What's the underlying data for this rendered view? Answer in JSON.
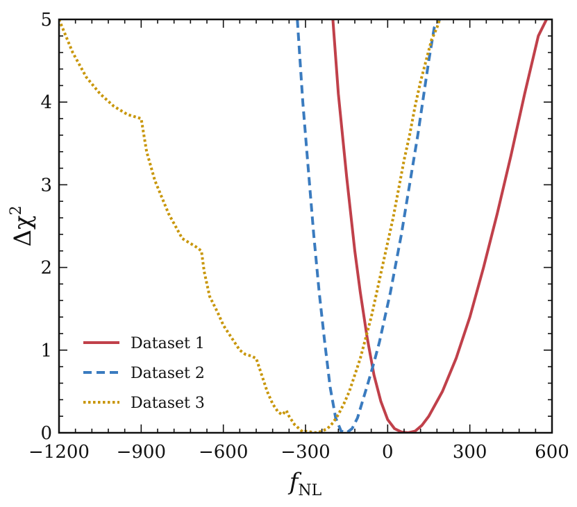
{
  "chart_data": {
    "type": "line",
    "title": "",
    "xlabel": "f",
    "xlabel_sub": "NL",
    "ylabel": "Δχ",
    "ylabel_sup": "2",
    "xlim": [
      -1200,
      600
    ],
    "ylim": [
      0,
      5
    ],
    "xticks": [
      -1200,
      -900,
      -600,
      -300,
      0,
      300,
      600
    ],
    "xtick_labels": [
      "−1200",
      "−900",
      "−600",
      "−300",
      "0",
      "300",
      "600"
    ],
    "yticks": [
      0,
      1,
      2,
      3,
      4,
      5
    ],
    "ytick_labels": [
      "0",
      "1",
      "2",
      "3",
      "4",
      "5"
    ],
    "legend_position": "lower-left",
    "series": [
      {
        "name": "Dataset 1",
        "style": "solid",
        "color": "#c0404a",
        "x": [
          -200,
          -180,
          -150,
          -120,
          -100,
          -75,
          -50,
          -25,
          0,
          25,
          50,
          75,
          100,
          125,
          150,
          200,
          250,
          300,
          350,
          400,
          450,
          500,
          550,
          580
        ],
        "y": [
          5.0,
          4.1,
          3.1,
          2.2,
          1.7,
          1.15,
          0.7,
          0.38,
          0.16,
          0.05,
          0.01,
          0.0,
          0.02,
          0.09,
          0.2,
          0.5,
          0.9,
          1.4,
          2.0,
          2.65,
          3.35,
          4.1,
          4.8,
          5.0
        ]
      },
      {
        "name": "Dataset 2",
        "style": "dashed",
        "color": "#3a7bbf",
        "x": [
          -330,
          -310,
          -290,
          -270,
          -250,
          -230,
          -210,
          -190,
          -170,
          -150,
          -130,
          -110,
          -90,
          -70,
          -50,
          -30,
          -10,
          10,
          30,
          50,
          70,
          90,
          110,
          130,
          150,
          170,
          190
        ],
        "y": [
          5.0,
          4.0,
          3.2,
          2.4,
          1.7,
          1.1,
          0.55,
          0.18,
          0.02,
          0.0,
          0.05,
          0.18,
          0.4,
          0.62,
          0.85,
          1.1,
          1.4,
          1.7,
          2.05,
          2.4,
          2.8,
          3.2,
          3.6,
          4.05,
          4.5,
          4.9,
          5.0
        ]
      },
      {
        "name": "Dataset 3",
        "style": "dotted",
        "color": "#c8960a",
        "x": [
          -1200,
          -1150,
          -1100,
          -1050,
          -1000,
          -950,
          -900,
          -880,
          -850,
          -800,
          -750,
          -700,
          -680,
          -670,
          -650,
          -620,
          -600,
          -580,
          -560,
          -540,
          -520,
          -500,
          -480,
          -460,
          -440,
          -420,
          -400,
          -385,
          -370,
          -360,
          -340,
          -320,
          -310,
          -300,
          -280,
          -260,
          -240,
          -220,
          -200,
          -180,
          -160,
          -140,
          -120,
          -100,
          -80,
          -60,
          -40,
          -20,
          0,
          20,
          40,
          60,
          80,
          100,
          120,
          140,
          160,
          180,
          190
        ],
        "y": [
          5.0,
          4.6,
          4.3,
          4.1,
          3.95,
          3.85,
          3.8,
          3.4,
          3.05,
          2.65,
          2.35,
          2.25,
          2.2,
          1.95,
          1.65,
          1.45,
          1.3,
          1.2,
          1.1,
          1.0,
          0.95,
          0.93,
          0.9,
          0.7,
          0.5,
          0.35,
          0.25,
          0.22,
          0.27,
          0.2,
          0.1,
          0.04,
          0.01,
          0.02,
          0.01,
          0.0,
          0.02,
          0.05,
          0.12,
          0.22,
          0.35,
          0.5,
          0.7,
          0.9,
          1.15,
          1.4,
          1.7,
          2.0,
          2.3,
          2.6,
          2.95,
          3.3,
          3.6,
          3.95,
          4.25,
          4.5,
          4.75,
          4.9,
          5.0
        ]
      }
    ]
  }
}
